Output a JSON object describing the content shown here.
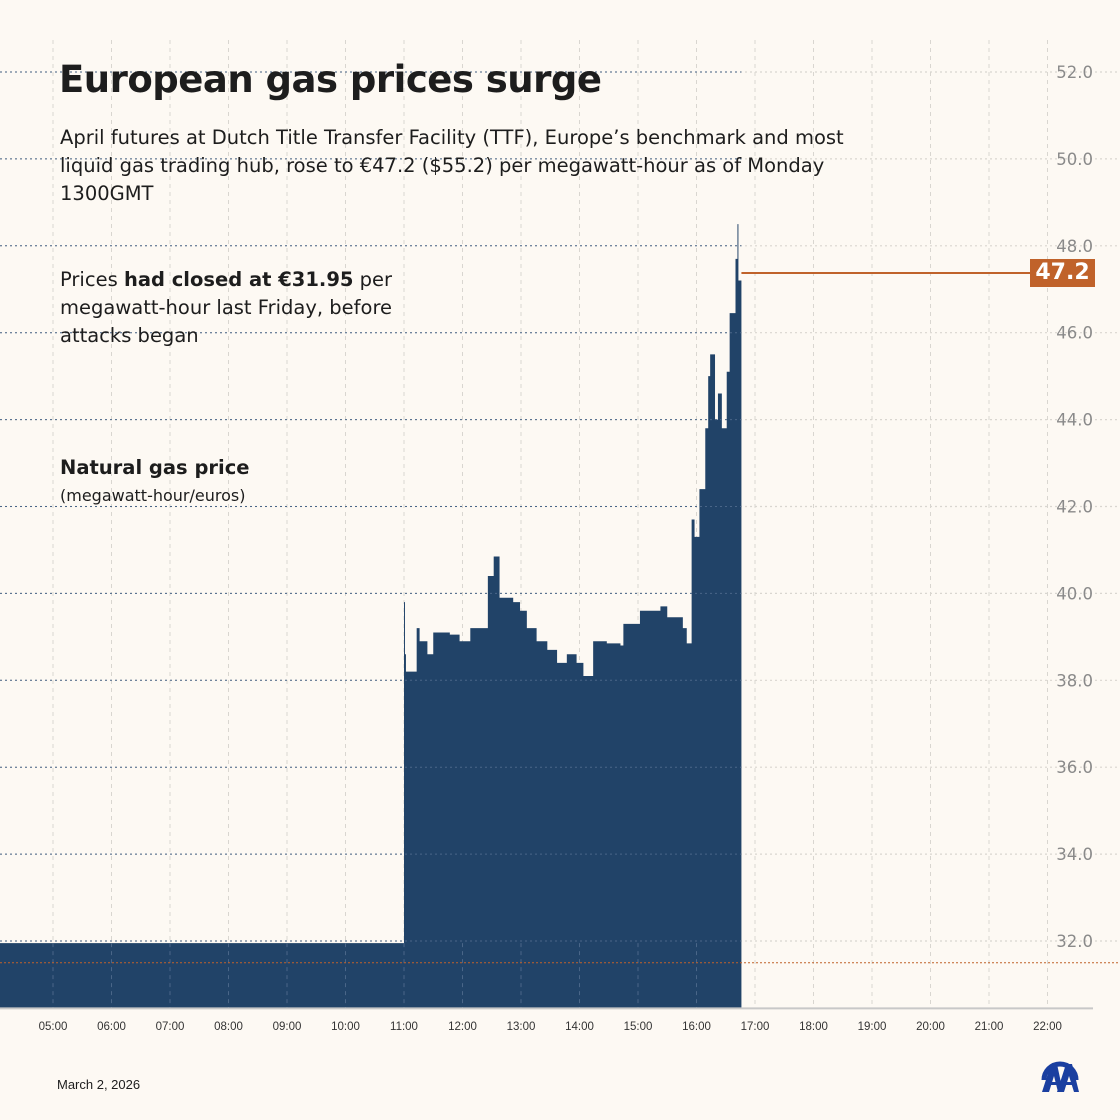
{
  "title": "European gas prices surge",
  "subtitle": "April futures at Dutch Title Transfer Facility (TTF), Europe’s benchmark and most liquid gas trading hub, rose to €47.2 ($55.2) per megawatt-hour as of Monday 1300GMT",
  "note": {
    "pre": "Prices ",
    "bold": "had closed at €31.95",
    "post": " per megawatt-hour last Friday, before attacks began"
  },
  "unit_title": "Natural gas price",
  "unit_sub": "(megawatt-hour/euros)",
  "date": "March 2, 2026",
  "logo_text": "AA",
  "colors": {
    "fill": "#214368",
    "accent": "#c0622a",
    "logo": "#1a3fa0",
    "grid": "#d9d6d0"
  },
  "chart_data": {
    "type": "area",
    "title": "European gas prices surge",
    "xlabel": "",
    "ylabel": "Natural gas price (megawatt-hour/euros)",
    "ylim": [
      30.45,
      52.0
    ],
    "yticks": [
      "32.0",
      "34.0",
      "36.0",
      "38.0",
      "40.0",
      "42.0",
      "44.0",
      "46.0",
      "48.0",
      "50.0",
      "52.0"
    ],
    "xticks": [
      "05:00",
      "06:00",
      "07:00",
      "08:00",
      "09:00",
      "10:00",
      "11:00",
      "12:00",
      "13:00",
      "14:00",
      "15:00",
      "16:00",
      "17:00",
      "18:00",
      "19:00",
      "20:00",
      "21:00",
      "22:00"
    ],
    "grid": true,
    "last_value_label": "47.2",
    "reference_line": 31.5,
    "series": [
      {
        "x": [
          "04:05",
          "11:00",
          "11:01",
          "11:02",
          "11:13",
          "11:16",
          "11:24",
          "11:30",
          "11:47",
          "11:57",
          "12:08",
          "12:21",
          "12:26",
          "12:32",
          "12:38",
          "12:52",
          "12:59",
          "13:06",
          "13:16",
          "13:27",
          "13:37",
          "13:47",
          "13:57",
          "14:04",
          "14:14",
          "14:28",
          "14:42",
          "14:45",
          "15:02",
          "15:23",
          "15:30",
          "15:46",
          "15:50",
          "15:55",
          "15:58",
          "16:03",
          "16:09",
          "16:12",
          "16:14",
          "16:19",
          "16:22",
          "16:26",
          "16:31",
          "16:34",
          "16:40",
          "16:42",
          "16:43"
        ],
        "y": [
          31.95,
          39.8,
          38.6,
          38.2,
          39.2,
          38.9,
          38.6,
          39.1,
          39.05,
          38.9,
          39.2,
          39.2,
          40.4,
          40.85,
          39.9,
          39.8,
          39.6,
          39.2,
          38.9,
          38.7,
          38.4,
          38.6,
          38.4,
          38.1,
          38.9,
          38.85,
          38.8,
          39.3,
          39.6,
          39.7,
          39.45,
          39.2,
          38.85,
          41.7,
          41.3,
          42.4,
          43.8,
          45.0,
          45.5,
          44.0,
          44.6,
          43.8,
          45.1,
          46.45,
          47.7,
          48.5,
          47.2
        ]
      }
    ]
  }
}
